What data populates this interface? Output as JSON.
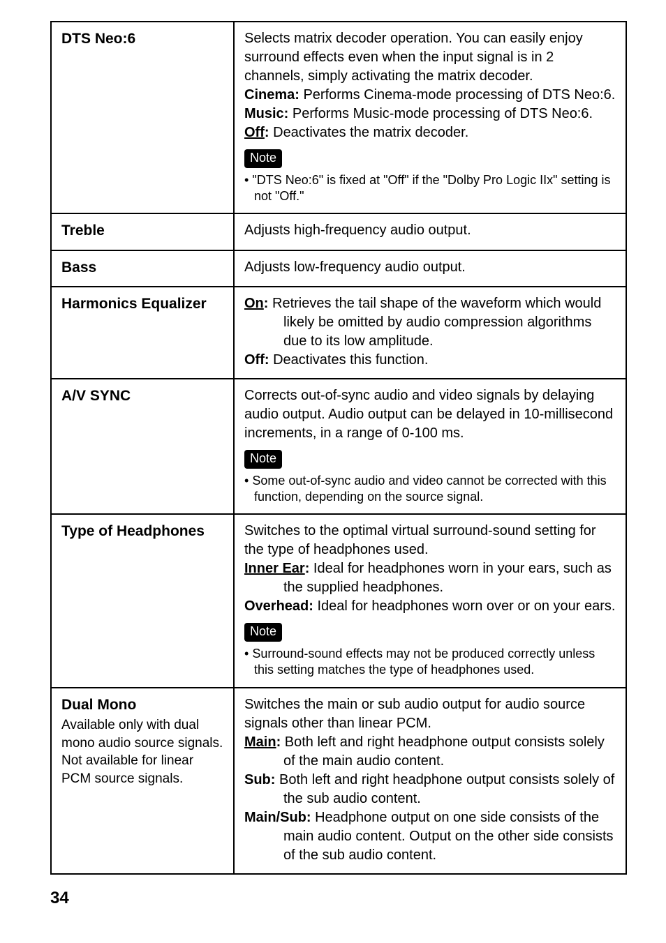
{
  "rows": [
    {
      "term": "DTS Neo:6",
      "desc_top": "Selects matrix decoder operation. You can easily enjoy surround effects even when the input signal is in 2 channels, simply activating the matrix decoder.",
      "opts": [
        {
          "label": "Cinema:",
          "text": " Performs Cinema-mode processing of DTS Neo:6."
        },
        {
          "label": "Music:",
          "text": " Performs Music-mode processing of DTS Neo:6."
        },
        {
          "label_html": "<span class=\"under\">Off</span><span class=\"label\">:</span>",
          "text": " Deactivates the matrix decoder."
        }
      ],
      "note_label": "Note",
      "note_bullets": [
        "\"DTS Neo:6\" is fixed at \"Off\" if the \"Dolby Pro Logic IIx\" setting is not \"Off.\""
      ]
    },
    {
      "term": "Treble",
      "desc_top": "Adjusts high-frequency audio output."
    },
    {
      "term": "Bass",
      "desc_top": "Adjusts low-frequency audio output."
    },
    {
      "term": "Harmonics Equalizer",
      "opts": [
        {
          "label_html": "<span class=\"under\">On</span><span class=\"label\">:</span>",
          "text": " Retrieves the tail shape of the waveform which would likely be omitted by audio compression algorithms due to its low amplitude."
        },
        {
          "label": "Off:",
          "text": " Deactivates this function."
        }
      ]
    },
    {
      "term": "A/V SYNC",
      "desc_top": "Corrects out-of-sync audio and video signals by delaying audio output. Audio output can be delayed in 10-millisecond increments, in a range of 0-100 ms.",
      "note_label": "Note",
      "note_bullets": [
        "Some out-of-sync audio and video cannot be corrected with this function, depending on the source signal."
      ]
    },
    {
      "term": "Type of Headphones",
      "desc_top": "Switches to the optimal virtual surround-sound setting for the type of headphones used.",
      "opts": [
        {
          "label_html": "<span class=\"under\">Inner Ear</span><span class=\"label\">:</span>",
          "text": " Ideal for headphones worn in your ears, such as the supplied headphones."
        },
        {
          "label": "Overhead:",
          "text": " Ideal for headphones worn over or on your ears."
        }
      ],
      "note_label": "Note",
      "note_bullets": [
        "Surround-sound effects may not be produced correctly unless this setting matches the type of headphones used."
      ]
    },
    {
      "term": "Dual Mono",
      "term_sub": "Available only with dual mono audio source signals.\nNot available for linear PCM source signals.",
      "desc_top": "Switches the main or sub audio output for audio source signals other than linear PCM.",
      "opts": [
        {
          "label_html": "<span class=\"under\">Main</span><span class=\"label\">:</span>",
          "text": " Both left and right headphone output consists solely of the main audio content."
        },
        {
          "label": "Sub:",
          "text": " Both left and right headphone output consists solely of the sub audio content."
        },
        {
          "label": "Main/Sub:",
          "text": " Headphone output on one side consists of the main audio content. Output on the other side consists of the sub audio content."
        }
      ]
    }
  ],
  "page_number": "34"
}
